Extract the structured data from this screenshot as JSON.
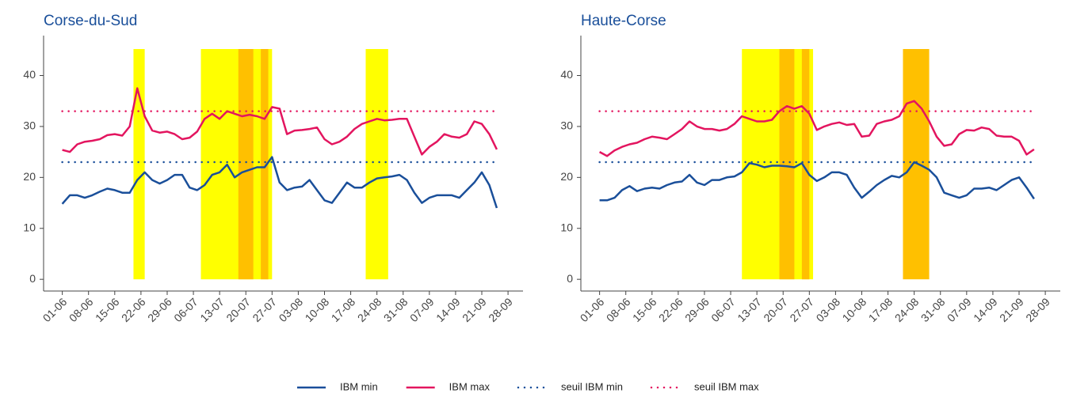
{
  "legend_position": "bottom",
  "chart_data": [
    {
      "type": "line",
      "title": "Corse-du-Sud",
      "x": [
        "01-06",
        "03-06",
        "05-06",
        "07-06",
        "09-06",
        "11-06",
        "13-06",
        "15-06",
        "17-06",
        "19-06",
        "21-06",
        "23-06",
        "25-06",
        "27-06",
        "29-06",
        "01-07",
        "03-07",
        "05-07",
        "07-07",
        "09-07",
        "11-07",
        "13-07",
        "15-07",
        "17-07",
        "19-07",
        "21-07",
        "23-07",
        "25-07",
        "27-07",
        "29-07",
        "31-07",
        "02-08",
        "04-08",
        "06-08",
        "08-08",
        "10-08",
        "12-08",
        "14-08",
        "16-08",
        "18-08",
        "20-08",
        "22-08",
        "24-08",
        "26-08",
        "28-08",
        "30-08",
        "01-09",
        "03-09",
        "05-09",
        "07-09",
        "09-09",
        "11-09",
        "13-09",
        "15-09",
        "17-09",
        "19-09",
        "21-09",
        "23-09",
        "25-09"
      ],
      "series": [
        {
          "name": "IBM min",
          "color": "#1a4f9a",
          "values": [
            14.8,
            16.5,
            16.5,
            16,
            16.5,
            17.2,
            17.8,
            17.5,
            17,
            17,
            19.5,
            21,
            19.5,
            18.8,
            19.5,
            20.5,
            20.5,
            18,
            17.5,
            18.5,
            20.5,
            21,
            22.5,
            20,
            21,
            21.5,
            22,
            22,
            24,
            19,
            17.5,
            18,
            18.2,
            19.5,
            17.5,
            15.5,
            15,
            17,
            19,
            18,
            18,
            19,
            19.8,
            20,
            20.2,
            20.5,
            19.5,
            17,
            15,
            16,
            16.5,
            16.5,
            16.5,
            16,
            17.5,
            19,
            21,
            18.5,
            14
          ]
        },
        {
          "name": "IBM max",
          "color": "#e3155f",
          "values": [
            25.4,
            25,
            26.5,
            27,
            27.2,
            27.5,
            28.3,
            28.5,
            28.2,
            30,
            37.5,
            32,
            29.2,
            28.8,
            29,
            28.5,
            27.5,
            27.8,
            29,
            31.5,
            32.5,
            31.5,
            33,
            32.5,
            32,
            32.3,
            32,
            31.5,
            33.8,
            33.5,
            28.5,
            29.2,
            29.3,
            29.5,
            29.8,
            27.5,
            26.5,
            27,
            28,
            29.5,
            30.5,
            31,
            31.5,
            31.2,
            31.3,
            31.5,
            31.5,
            28,
            24.5,
            26,
            27,
            28.5,
            28,
            27.8,
            28.5,
            31,
            30.5,
            28.5,
            25.5
          ]
        }
      ],
      "thresholds": [
        {
          "name": "seuil IBM min",
          "value": 23,
          "color": "#1a4f9a"
        },
        {
          "name": "seuil IBM max",
          "value": 33,
          "color": "#e3155f"
        }
      ],
      "bands": [
        {
          "start": "20-06",
          "end": "23-06",
          "color": "#ffff00"
        },
        {
          "start": "08-07",
          "end": "27-07",
          "color": "#ffff00"
        },
        {
          "start": "18-07",
          "end": "22-07",
          "color": "#ffc000"
        },
        {
          "start": "24-07",
          "end": "26-07",
          "color": "#ffc000"
        },
        {
          "start": "21-08",
          "end": "27-08",
          "color": "#ffff00"
        }
      ],
      "xlim": [
        "27-05",
        "02-10"
      ],
      "xticks": [
        "01-06",
        "08-06",
        "15-06",
        "22-06",
        "29-06",
        "06-07",
        "13-07",
        "20-07",
        "27-07",
        "03-08",
        "10-08",
        "17-08",
        "24-08",
        "31-08",
        "07-09",
        "14-09",
        "21-09",
        "28-09"
      ],
      "ylim": [
        -2.3,
        45.2
      ],
      "yticks": [
        0,
        10,
        20,
        30,
        40
      ]
    },
    {
      "type": "line",
      "title": "Haute-Corse",
      "x": [
        "01-06",
        "03-06",
        "05-06",
        "07-06",
        "09-06",
        "11-06",
        "13-06",
        "15-06",
        "17-06",
        "19-06",
        "21-06",
        "23-06",
        "25-06",
        "27-06",
        "29-06",
        "01-07",
        "03-07",
        "05-07",
        "07-07",
        "09-07",
        "11-07",
        "13-07",
        "15-07",
        "17-07",
        "19-07",
        "21-07",
        "23-07",
        "25-07",
        "27-07",
        "29-07",
        "31-07",
        "02-08",
        "04-08",
        "06-08",
        "08-08",
        "10-08",
        "12-08",
        "14-08",
        "16-08",
        "18-08",
        "20-08",
        "22-08",
        "24-08",
        "26-08",
        "28-08",
        "30-08",
        "01-09",
        "03-09",
        "05-09",
        "07-09",
        "09-09",
        "11-09",
        "13-09",
        "15-09",
        "17-09",
        "19-09",
        "21-09",
        "23-09",
        "25-09"
      ],
      "series": [
        {
          "name": "IBM min",
          "color": "#1a4f9a",
          "values": [
            15.5,
            15.5,
            16,
            17.5,
            18.3,
            17.3,
            17.8,
            18,
            17.8,
            18.5,
            19,
            19.2,
            20.5,
            19,
            18.5,
            19.5,
            19.5,
            20,
            20.2,
            21,
            22.8,
            22.5,
            22,
            22.3,
            22.3,
            22.2,
            22,
            22.8,
            20.5,
            19.3,
            20,
            21,
            21,
            20.5,
            18,
            16,
            17.2,
            18.5,
            19.5,
            20.3,
            20,
            21,
            23,
            22.3,
            21.5,
            20,
            17,
            16.5,
            16,
            16.5,
            17.8,
            17.8,
            18,
            17.5,
            18.5,
            19.5,
            20,
            18,
            15.8
          ]
        },
        {
          "name": "IBM max",
          "color": "#e3155f",
          "values": [
            25,
            24.2,
            25.3,
            26,
            26.5,
            26.8,
            27.5,
            28,
            27.8,
            27.5,
            28.5,
            29.5,
            31,
            30,
            29.5,
            29.5,
            29.2,
            29.5,
            30.5,
            32,
            31.5,
            31,
            31,
            31.3,
            33,
            34,
            33.5,
            34,
            32.5,
            29.3,
            30,
            30.5,
            30.8,
            30.3,
            30.5,
            28,
            28.2,
            30.5,
            31,
            31.3,
            32,
            34.5,
            35,
            33.5,
            31,
            28,
            26.2,
            26.5,
            28.5,
            29.3,
            29.2,
            29.8,
            29.5,
            28.2,
            28,
            28,
            27.2,
            24.5,
            25.5
          ]
        }
      ],
      "thresholds": [
        {
          "name": "seuil IBM min",
          "value": 23,
          "color": "#1a4f9a"
        },
        {
          "name": "seuil IBM max",
          "value": 33,
          "color": "#e3155f"
        }
      ],
      "bands": [
        {
          "start": "09-07",
          "end": "28-07",
          "color": "#ffff00"
        },
        {
          "start": "19-07",
          "end": "23-07",
          "color": "#ffc000"
        },
        {
          "start": "25-07",
          "end": "27-07",
          "color": "#ffc000"
        },
        {
          "start": "21-08",
          "end": "28-08",
          "color": "#ffc000"
        }
      ],
      "xlim": [
        "27-05",
        "02-10"
      ],
      "xticks": [
        "01-06",
        "08-06",
        "15-06",
        "22-06",
        "29-06",
        "06-07",
        "13-07",
        "20-07",
        "27-07",
        "03-08",
        "10-08",
        "17-08",
        "24-08",
        "31-08",
        "07-09",
        "14-09",
        "21-09",
        "28-09"
      ],
      "ylim": [
        -2.3,
        45.2
      ],
      "yticks": [
        0,
        10,
        20,
        30,
        40
      ]
    }
  ]
}
